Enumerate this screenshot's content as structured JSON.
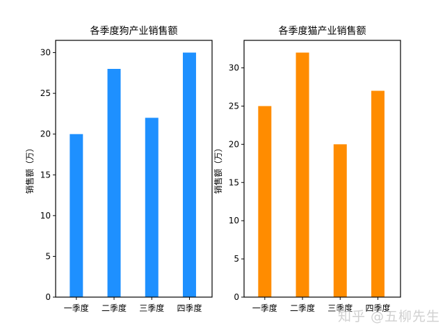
{
  "chart_data": [
    {
      "type": "bar",
      "title": "各季度狗产业销售额",
      "xlabel": "",
      "ylabel": "销售额（万）",
      "categories": [
        "一季度",
        "二季度",
        "三季度",
        "四季度"
      ],
      "values": [
        20,
        28,
        22,
        30
      ],
      "color": "#1E90FF",
      "ylim": [
        0,
        31.5
      ],
      "yticks": [
        0,
        5,
        10,
        15,
        20,
        25,
        30
      ],
      "grid": false
    },
    {
      "type": "bar",
      "title": "各季度猫产业销售额",
      "xlabel": "",
      "ylabel": "销售额（万）",
      "categories": [
        "一季度",
        "二季度",
        "三季度",
        "四季度"
      ],
      "values": [
        25,
        32,
        20,
        27
      ],
      "color": "#FF8C00",
      "ylim": [
        0,
        33.6
      ],
      "yticks": [
        0,
        5,
        10,
        15,
        20,
        25,
        30
      ],
      "grid": false
    }
  ],
  "watermark": "知乎 @五柳先生"
}
